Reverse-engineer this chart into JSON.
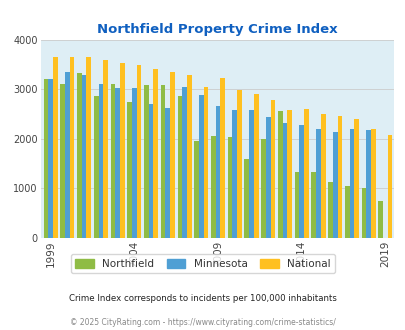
{
  "title": "Northfield Property Crime Index",
  "subtitle": "Crime Index corresponds to incidents per 100,000 inhabitants",
  "footer": "© 2025 CityRating.com - https://www.cityrating.com/crime-statistics/",
  "years": [
    1999,
    2000,
    2001,
    2002,
    2003,
    2004,
    2005,
    2006,
    2007,
    2008,
    2009,
    2010,
    2011,
    2012,
    2013,
    2014,
    2015,
    2016,
    2017,
    2018,
    2019
  ],
  "northfield": [
    3200,
    3100,
    3330,
    2860,
    3100,
    2730,
    3090,
    3090,
    2870,
    1960,
    2060,
    2030,
    1590,
    2000,
    2560,
    1330,
    1330,
    1130,
    1050,
    1000,
    730
  ],
  "minnesota": [
    3200,
    3350,
    3280,
    3110,
    3020,
    3030,
    2690,
    2610,
    3050,
    2880,
    2650,
    2580,
    2570,
    2440,
    2310,
    2280,
    2200,
    2130,
    2190,
    2170,
    0
  ],
  "national": [
    3640,
    3650,
    3640,
    3580,
    3520,
    3490,
    3410,
    3340,
    3280,
    3050,
    3220,
    2990,
    2900,
    2770,
    2580,
    2590,
    2500,
    2460,
    2390,
    2200,
    2080
  ],
  "northfield_color": "#8fbc45",
  "minnesota_color": "#4f9fd4",
  "national_color": "#ffc020",
  "bg_color": "#deeef5",
  "ylim": [
    0,
    4000
  ],
  "yticks": [
    0,
    1000,
    2000,
    3000,
    4000
  ],
  "xtick_years": [
    1999,
    2004,
    2009,
    2014,
    2019
  ],
  "title_color": "#1060c0",
  "subtitle_color": "#222222",
  "footer_color": "#888888",
  "grid_color": "#cccccc",
  "bar_width": 0.28
}
